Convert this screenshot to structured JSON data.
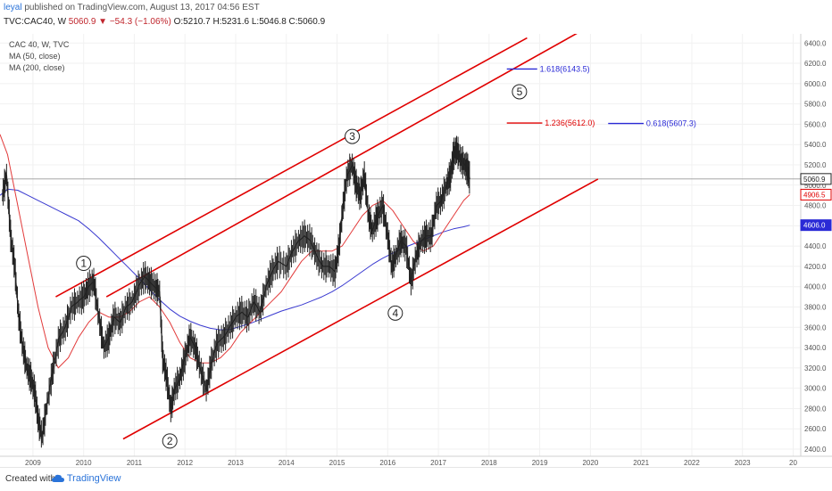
{
  "header": {
    "author": "leyal",
    "published_text": "published on TradingView.com, August 13, 2017 04:56 EST",
    "symbol": "TVC:CAC40, W",
    "change": "5060.9 ▼ −54.3 (−1.06%)",
    "ohlc": "O:5210.7 H:5231.6 L:5046.8 C:5060.9"
  },
  "legend": {
    "series": "CAC 40, W, TVC",
    "ma50": "MA (50, close)",
    "ma200": "MA (200, close)"
  },
  "footer": {
    "created_with": "Created with",
    "brand": "TradingView"
  },
  "colors": {
    "price": "#222222",
    "ma50": "#e23b3b",
    "ma200": "#3a3ad0",
    "channel": "#e00000",
    "fib_red": "#e00000",
    "fib_blue": "#2a2ad6"
  },
  "chart_data": {
    "type": "line",
    "title": "CAC 40, W, TVC",
    "x_ticks": [
      "2009",
      "2010",
      "2011",
      "2012",
      "2013",
      "2014",
      "2015",
      "2016",
      "2017",
      "2018",
      "2019",
      "2020",
      "2021",
      "2022",
      "2023",
      "20"
    ],
    "x_range": [
      2008.35,
      2024.15
    ],
    "y_ticks": [
      2400,
      2600,
      2800,
      3000,
      3200,
      3400,
      3600,
      3800,
      4000,
      4200,
      4400,
      4600,
      4800,
      5000,
      5200,
      5400,
      5600,
      5800,
      6000,
      6200,
      6400
    ],
    "ylim": [
      2330,
      6490
    ],
    "price_series": {
      "name": "CAC 40",
      "points": [
        [
          2008.4,
          4900
        ],
        [
          2008.48,
          5100
        ],
        [
          2008.56,
          4500
        ],
        [
          2008.64,
          4200
        ],
        [
          2008.72,
          3700
        ],
        [
          2008.8,
          3400
        ],
        [
          2008.88,
          3200
        ],
        [
          2008.96,
          3100
        ],
        [
          2009.04,
          2950
        ],
        [
          2009.1,
          2700
        ],
        [
          2009.18,
          2520
        ],
        [
          2009.28,
          2850
        ],
        [
          2009.4,
          3200
        ],
        [
          2009.52,
          3500
        ],
        [
          2009.64,
          3600
        ],
        [
          2009.76,
          3800
        ],
        [
          2009.88,
          3850
        ],
        [
          2010.0,
          3900
        ],
        [
          2010.1,
          4000
        ],
        [
          2010.2,
          4050
        ],
        [
          2010.3,
          3700
        ],
        [
          2010.4,
          3400
        ],
        [
          2010.5,
          3500
        ],
        [
          2010.6,
          3700
        ],
        [
          2010.72,
          3650
        ],
        [
          2010.84,
          3800
        ],
        [
          2010.96,
          3850
        ],
        [
          2011.08,
          4000
        ],
        [
          2011.2,
          4100
        ],
        [
          2011.3,
          4050
        ],
        [
          2011.4,
          4000
        ],
        [
          2011.5,
          3950
        ],
        [
          2011.56,
          3300
        ],
        [
          2011.64,
          3100
        ],
        [
          2011.72,
          2800
        ],
        [
          2011.8,
          3000
        ],
        [
          2011.9,
          3100
        ],
        [
          2012.0,
          3300
        ],
        [
          2012.1,
          3500
        ],
        [
          2012.2,
          3400
        ],
        [
          2012.3,
          3200
        ],
        [
          2012.42,
          2980
        ],
        [
          2012.52,
          3250
        ],
        [
          2012.64,
          3450
        ],
        [
          2012.76,
          3500
        ],
        [
          2012.88,
          3600
        ],
        [
          2013.0,
          3700
        ],
        [
          2013.12,
          3750
        ],
        [
          2013.24,
          3700
        ],
        [
          2013.36,
          3850
        ],
        [
          2013.48,
          3750
        ],
        [
          2013.6,
          4000
        ],
        [
          2013.72,
          4150
        ],
        [
          2013.84,
          4250
        ],
        [
          2014.0,
          4200
        ],
        [
          2014.12,
          4350
        ],
        [
          2014.24,
          4450
        ],
        [
          2014.36,
          4500
        ],
        [
          2014.48,
          4450
        ],
        [
          2014.6,
          4300
        ],
        [
          2014.72,
          4200
        ],
        [
          2014.84,
          4200
        ],
        [
          2014.96,
          4150
        ],
        [
          2015.04,
          4400
        ],
        [
          2015.12,
          4800
        ],
        [
          2015.2,
          5100
        ],
        [
          2015.3,
          5200
        ],
        [
          2015.38,
          5000
        ],
        [
          2015.46,
          4900
        ],
        [
          2015.54,
          5100
        ],
        [
          2015.62,
          4700
        ],
        [
          2015.7,
          4550
        ],
        [
          2015.8,
          4700
        ],
        [
          2015.9,
          4800
        ],
        [
          2016.0,
          4500
        ],
        [
          2016.08,
          4200
        ],
        [
          2016.16,
          4300
        ],
        [
          2016.26,
          4450
        ],
        [
          2016.36,
          4400
        ],
        [
          2016.46,
          4050
        ],
        [
          2016.56,
          4300
        ],
        [
          2016.66,
          4450
        ],
        [
          2016.76,
          4500
        ],
        [
          2016.86,
          4500
        ],
        [
          2016.96,
          4800
        ],
        [
          2017.06,
          4850
        ],
        [
          2017.16,
          5000
        ],
        [
          2017.24,
          5100
        ],
        [
          2017.3,
          5300
        ],
        [
          2017.36,
          5350
        ],
        [
          2017.44,
          5250
        ],
        [
          2017.52,
          5200
        ],
        [
          2017.58,
          5150
        ],
        [
          2017.62,
          5060.9
        ]
      ]
    },
    "ma50_series": {
      "name": "MA (50, close)",
      "points": [
        [
          2008.35,
          5500
        ],
        [
          2008.5,
          5300
        ],
        [
          2008.7,
          4800
        ],
        [
          2008.9,
          4300
        ],
        [
          2009.1,
          3800
        ],
        [
          2009.3,
          3400
        ],
        [
          2009.5,
          3200
        ],
        [
          2009.7,
          3300
        ],
        [
          2009.9,
          3500
        ],
        [
          2010.1,
          3650
        ],
        [
          2010.3,
          3750
        ],
        [
          2010.5,
          3700
        ],
        [
          2010.7,
          3700
        ],
        [
          2010.9,
          3750
        ],
        [
          2011.1,
          3850
        ],
        [
          2011.3,
          3900
        ],
        [
          2011.5,
          3800
        ],
        [
          2011.7,
          3650
        ],
        [
          2011.9,
          3450
        ],
        [
          2012.1,
          3300
        ],
        [
          2012.3,
          3250
        ],
        [
          2012.5,
          3250
        ],
        [
          2012.7,
          3300
        ],
        [
          2012.9,
          3400
        ],
        [
          2013.1,
          3550
        ],
        [
          2013.3,
          3650
        ],
        [
          2013.5,
          3750
        ],
        [
          2013.7,
          3850
        ],
        [
          2013.9,
          3950
        ],
        [
          2014.1,
          4100
        ],
        [
          2014.3,
          4250
        ],
        [
          2014.5,
          4350
        ],
        [
          2014.7,
          4350
        ],
        [
          2014.9,
          4350
        ],
        [
          2015.1,
          4400
        ],
        [
          2015.3,
          4550
        ],
        [
          2015.5,
          4700
        ],
        [
          2015.7,
          4800
        ],
        [
          2015.9,
          4850
        ],
        [
          2016.1,
          4750
        ],
        [
          2016.3,
          4600
        ],
        [
          2016.5,
          4450
        ],
        [
          2016.7,
          4350
        ],
        [
          2016.9,
          4400
        ],
        [
          2017.1,
          4550
        ],
        [
          2017.3,
          4700
        ],
        [
          2017.5,
          4850
        ],
        [
          2017.62,
          4906.5
        ]
      ]
    },
    "ma200_series": {
      "name": "MA (200, close)",
      "points": [
        [
          2008.35,
          4900
        ],
        [
          2008.5,
          4960
        ],
        [
          2008.7,
          4950
        ],
        [
          2008.9,
          4900
        ],
        [
          2009.1,
          4850
        ],
        [
          2009.3,
          4800
        ],
        [
          2009.5,
          4750
        ],
        [
          2009.7,
          4700
        ],
        [
          2009.9,
          4650
        ],
        [
          2010.1,
          4570
        ],
        [
          2010.3,
          4480
        ],
        [
          2010.5,
          4380
        ],
        [
          2010.7,
          4280
        ],
        [
          2010.9,
          4180
        ],
        [
          2011.1,
          4080
        ],
        [
          2011.3,
          3970
        ],
        [
          2011.5,
          3870
        ],
        [
          2011.7,
          3780
        ],
        [
          2011.9,
          3710
        ],
        [
          2012.1,
          3660
        ],
        [
          2012.3,
          3620
        ],
        [
          2012.5,
          3590
        ],
        [
          2012.7,
          3575
        ],
        [
          2012.9,
          3580
        ],
        [
          2013.1,
          3610
        ],
        [
          2013.3,
          3640
        ],
        [
          2013.5,
          3680
        ],
        [
          2013.7,
          3720
        ],
        [
          2013.9,
          3760
        ],
        [
          2014.1,
          3790
        ],
        [
          2014.3,
          3820
        ],
        [
          2014.5,
          3860
        ],
        [
          2014.7,
          3900
        ],
        [
          2014.9,
          3950
        ],
        [
          2015.1,
          4010
        ],
        [
          2015.3,
          4080
        ],
        [
          2015.5,
          4150
        ],
        [
          2015.7,
          4220
        ],
        [
          2015.9,
          4280
        ],
        [
          2016.1,
          4330
        ],
        [
          2016.3,
          4380
        ],
        [
          2016.5,
          4420
        ],
        [
          2016.7,
          4460
        ],
        [
          2016.9,
          4500
        ],
        [
          2017.1,
          4540
        ],
        [
          2017.3,
          4570
        ],
        [
          2017.5,
          4590
        ],
        [
          2017.62,
          4606.0
        ]
      ]
    },
    "channel_lines": [
      {
        "from": [
          2009.45,
          3900
        ],
        "to": [
          2018.75,
          6450
        ]
      },
      {
        "from": [
          2010.45,
          3900
        ],
        "to": [
          2019.75,
          6500
        ]
      },
      {
        "from": [
          2010.78,
          2500
        ],
        "to": [
          2020.15,
          5060
        ]
      }
    ],
    "wave_labels": [
      {
        "text": "1",
        "x": 2010.0,
        "y": 4230
      },
      {
        "text": "2",
        "x": 2011.7,
        "y": 2480
      },
      {
        "text": "3",
        "x": 2015.3,
        "y": 5480
      },
      {
        "text": "4",
        "x": 2016.15,
        "y": 3740
      },
      {
        "text": "5",
        "x": 2018.6,
        "y": 5920
      }
    ],
    "fib_levels": [
      {
        "label": "1.618(6143.5)",
        "value": 6143.5,
        "x_from": 2018.35,
        "x_to": 2018.95,
        "color_key": "fib_blue",
        "text_x": 2019.0
      },
      {
        "label": "1.236(5612.0)",
        "value": 5612.0,
        "x_from": 2018.35,
        "x_to": 2019.05,
        "color_key": "fib_red",
        "text_x": 2019.1
      },
      {
        "label": "0.618(5607.3)",
        "value": 5607.3,
        "x_from": 2020.35,
        "x_to": 2021.05,
        "color_key": "fib_blue",
        "text_x": 2021.1
      }
    ],
    "last_price_line": 5060.9,
    "price_tags": [
      {
        "label": "5060.9",
        "value": 5060.9,
        "style": "dark"
      },
      {
        "label": "4906.5",
        "value": 4906.5,
        "style": "red"
      },
      {
        "label": "4606.0",
        "value": 4606.0,
        "style": "blue"
      }
    ]
  }
}
